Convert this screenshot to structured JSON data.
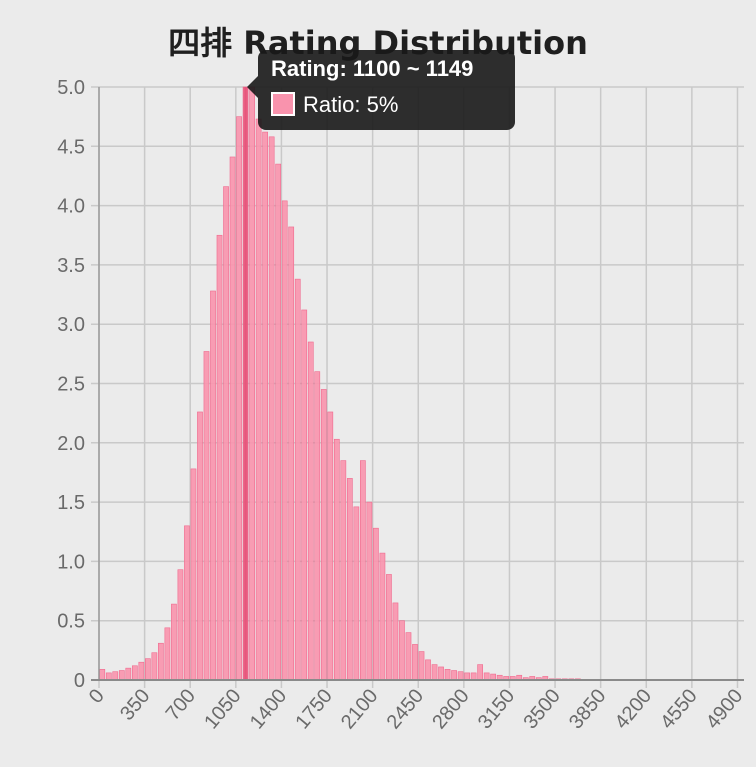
{
  "chart_data": {
    "type": "bar",
    "title": "四排 Rating Distribution",
    "xlabel": "",
    "ylabel": "",
    "ylim": [
      0,
      5
    ],
    "y_ticks": [
      "0",
      "0.5",
      "1.0",
      "1.5",
      "2.0",
      "2.5",
      "3.0",
      "3.5",
      "4.0",
      "4.5",
      "5.0"
    ],
    "x_ticks": [
      "0",
      "350",
      "700",
      "1050",
      "1400",
      "1750",
      "2100",
      "2450",
      "2800",
      "3150",
      "3500",
      "3850",
      "4200",
      "4550",
      "4900"
    ],
    "bin_width": 50,
    "x_start": 0,
    "grid": true,
    "bar_color": "#f993ad",
    "highlight_color": "#e8557c",
    "highlight_bin": "1100 ~ 1149",
    "series": [
      {
        "name": "Ratio",
        "values": [
          0.09,
          0.06,
          0.07,
          0.08,
          0.1,
          0.12,
          0.15,
          0.18,
          0.23,
          0.31,
          0.44,
          0.64,
          0.93,
          1.3,
          1.78,
          2.26,
          2.77,
          3.28,
          3.75,
          4.16,
          4.41,
          4.75,
          5.0,
          5.0,
          4.73,
          4.62,
          4.58,
          4.35,
          4.04,
          3.82,
          3.38,
          3.12,
          2.85,
          2.6,
          2.45,
          2.26,
          2.03,
          1.85,
          1.7,
          1.46,
          1.85,
          1.5,
          1.28,
          1.07,
          0.89,
          0.65,
          0.5,
          0.4,
          0.3,
          0.24,
          0.17,
          0.13,
          0.11,
          0.09,
          0.08,
          0.07,
          0.06,
          0.06,
          0.13,
          0.06,
          0.05,
          0.04,
          0.03,
          0.03,
          0.04,
          0.02,
          0.03,
          0.02,
          0.03,
          0.01,
          0.01,
          0.01,
          0.01,
          0.01,
          0,
          0,
          0,
          0,
          0,
          0,
          0,
          0,
          0,
          0,
          0,
          0,
          0,
          0,
          0,
          0,
          0,
          0,
          0,
          0,
          0,
          0,
          0,
          0
        ]
      }
    ]
  },
  "tooltip": {
    "title": "Rating: 1100 ~ 1149",
    "label": "Ratio: 5%"
  }
}
